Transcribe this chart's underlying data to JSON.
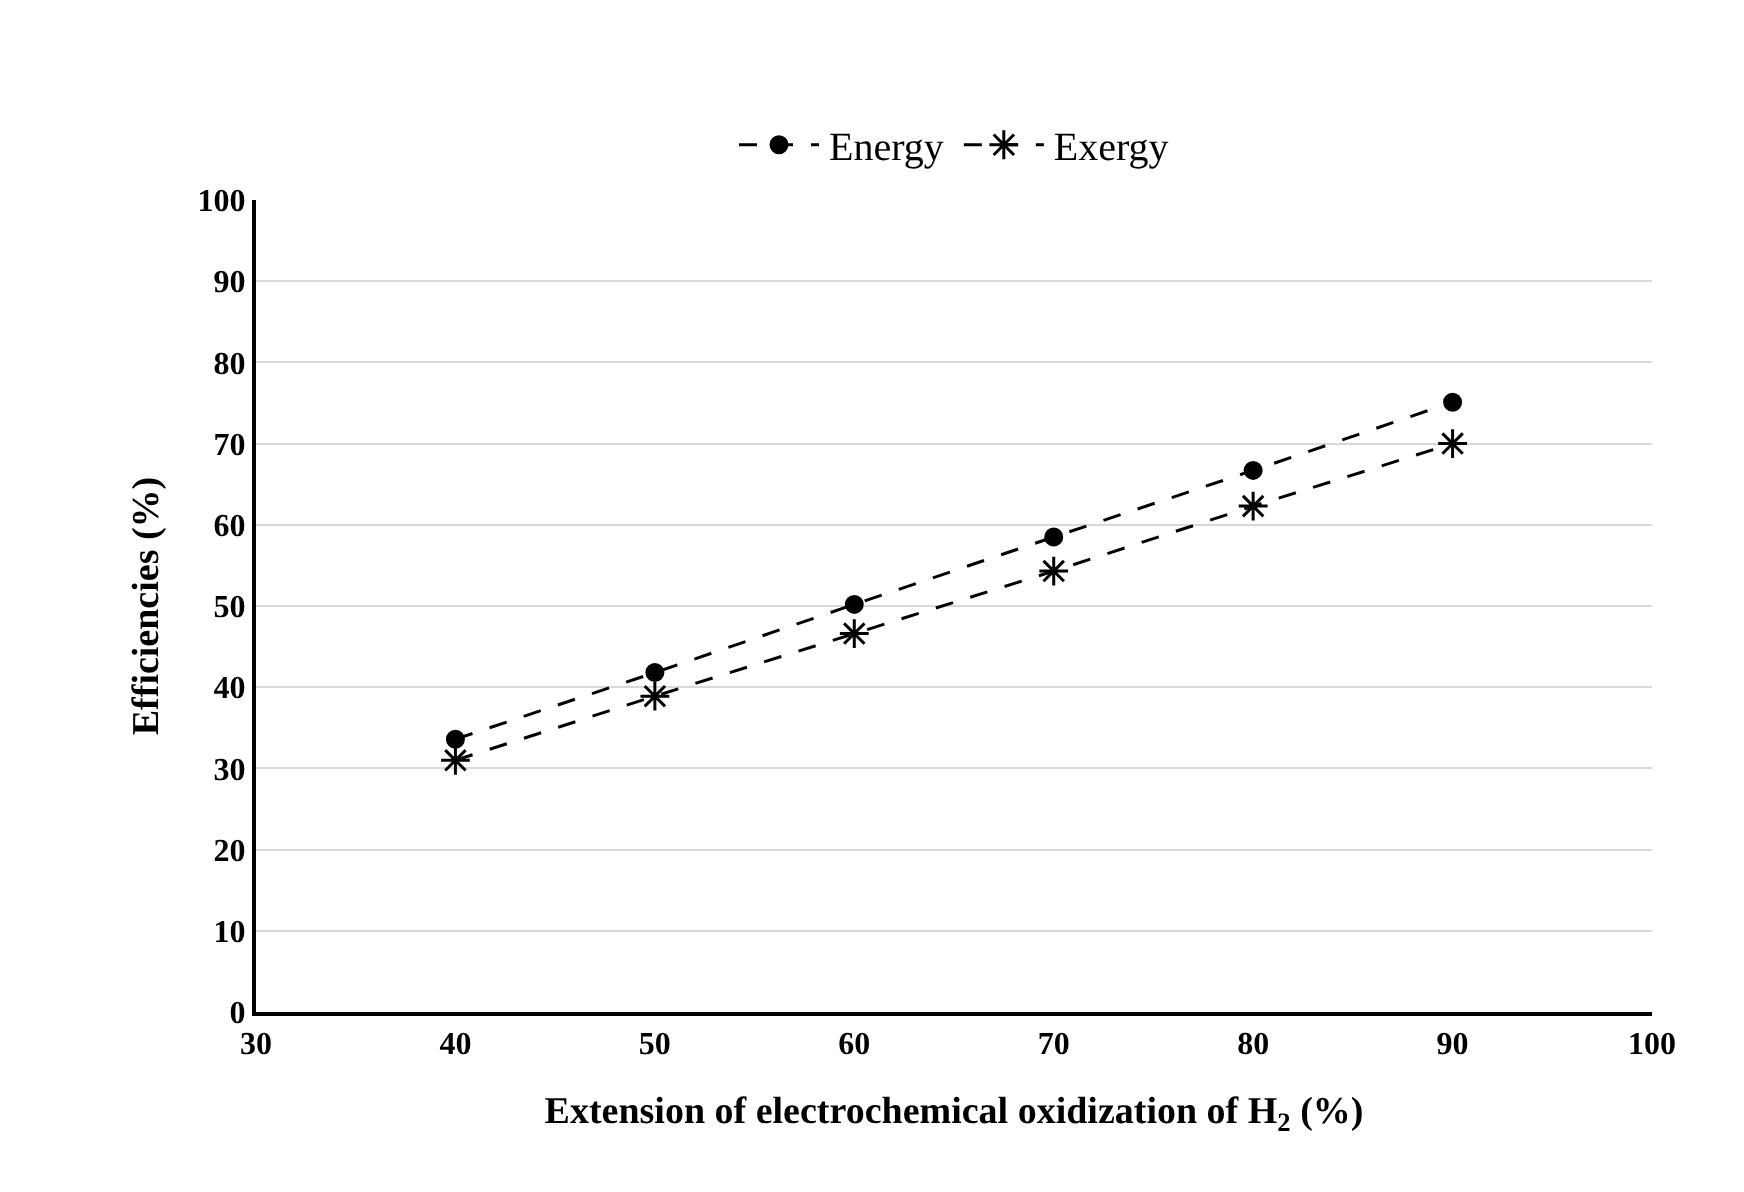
{
  "chart_data": {
    "type": "line",
    "xlabel": "Extension of electrochemical oxidization of H$_{2}$ (%)",
    "ylabel": "Efficiencies (%)",
    "x": [
      40,
      50,
      60,
      70,
      80,
      90
    ],
    "series": [
      {
        "name": "Energy",
        "color": "#000000",
        "marker": "circle",
        "values": [
          33.6,
          41.8,
          50.2,
          58.5,
          66.7,
          75.1
        ]
      },
      {
        "name": "Exergy",
        "color": "#000000",
        "marker": "cross",
        "values": [
          31.0,
          38.9,
          46.6,
          54.3,
          62.3,
          70.0
        ]
      }
    ],
    "xlim": [
      30,
      100
    ],
    "xticks": [
      30,
      40,
      50,
      60,
      70,
      80,
      90,
      100
    ],
    "ylim": [
      0,
      100
    ],
    "yticks": [
      0,
      10,
      20,
      30,
      40,
      50,
      60,
      70,
      80,
      90,
      100
    ],
    "grid": "y",
    "legend": "top",
    "line_style": "dashed"
  }
}
